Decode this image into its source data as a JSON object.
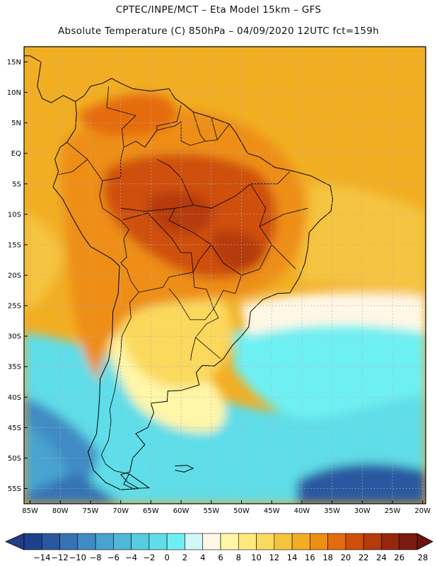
{
  "header": {
    "line1": "CPTEC/INPE/MCT –  Eta Model 15km – GFS",
    "line2": "Absolute Temperature (C) 850hPa – 04/09/2020 12UTC fct=159h"
  },
  "map": {
    "lat_labels": [
      "15N",
      "10N",
      "5N",
      "EQ",
      "5S",
      "10S",
      "15S",
      "20S",
      "25S",
      "30S",
      "35S",
      "40S",
      "45S",
      "50S",
      "55S"
    ],
    "lat_values": [
      15,
      10,
      5,
      0,
      -5,
      -10,
      -15,
      -20,
      -25,
      -30,
      -35,
      -40,
      -45,
      -50,
      -55
    ],
    "lon_labels": [
      "85W",
      "80W",
      "75W",
      "70W",
      "65W",
      "60W",
      "55W",
      "50W",
      "45W",
      "40W",
      "35W",
      "30W",
      "25W",
      "20W"
    ],
    "lon_values": [
      -85,
      -80,
      -75,
      -70,
      -65,
      -60,
      -55,
      -50,
      -45,
      -40,
      -35,
      -30,
      -25,
      -20
    ],
    "lat_range": [
      -57.5,
      17.5
    ],
    "lon_range": [
      -86,
      -19.5
    ]
  },
  "colorbar": {
    "tick_labels": [
      "-14",
      "-12",
      "-10",
      "-8",
      "-6",
      "-4",
      "-2",
      "0",
      "2",
      "4",
      "6",
      "8",
      "10",
      "12",
      "14",
      "16",
      "18",
      "20",
      "22",
      "24",
      "26",
      "28"
    ],
    "colors": [
      "#1e3f8c",
      "#2a58a0",
      "#3673b4",
      "#3f8cc4",
      "#47a3cf",
      "#4fb8d9",
      "#56cce0",
      "#60dde8",
      "#6ef0f2",
      "#d3f6f8",
      "#fff8e6",
      "#fff6a8",
      "#feea7c",
      "#fbd95d",
      "#f5c43f",
      "#f2ae22",
      "#ee8e12",
      "#e56c0c",
      "#cf4f0b",
      "#b53a0c",
      "#96270c",
      "#7a1a10"
    ],
    "under_color": "#243c88",
    "over_color": "#6d1310"
  }
}
